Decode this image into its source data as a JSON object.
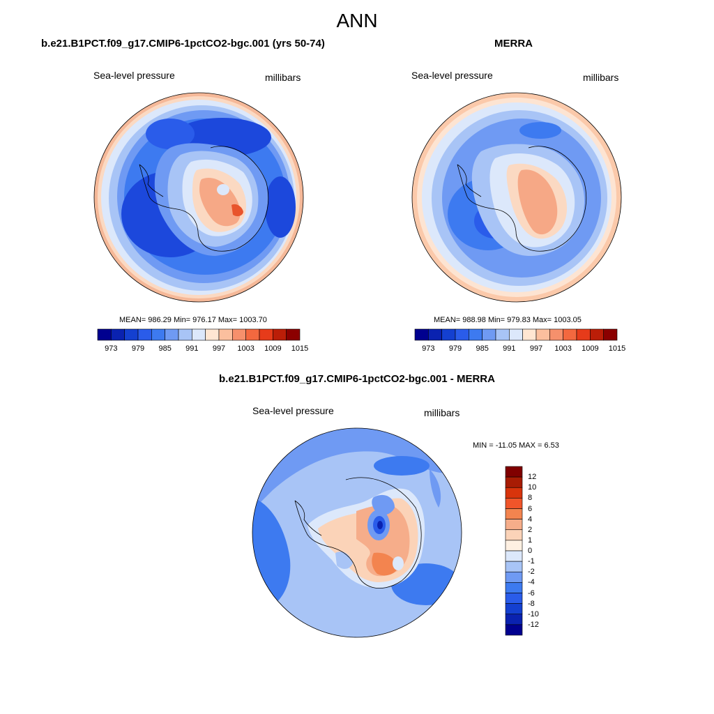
{
  "figure": {
    "main_title": "ANN",
    "panels": [
      {
        "id": "model",
        "title": "b.e21.B1PCT.f09_g17.CMIP6-1pctCO2-bgc.001 (yrs 50-74)",
        "left_label": "Sea-level pressure",
        "right_label": "millibars",
        "stats": "MEAN= 986.29  Min= 976.17  Max= 1003.70"
      },
      {
        "id": "obs",
        "title": "MERRA",
        "left_label": "Sea-level pressure",
        "right_label": "millibars",
        "stats": "MEAN= 988.98  Min= 979.83  Max= 1003.05"
      },
      {
        "id": "diff",
        "title": "b.e21.B1PCT.f09_g17.CMIP6-1pctCO2-bgc.001 - MERRA",
        "left_label": "Sea-level pressure",
        "right_label": "millibars",
        "stats": "MIN = -11.05 MAX =   6.53"
      }
    ],
    "abs_colorbar": {
      "colors": [
        "#00008f",
        "#0a22b0",
        "#1440d0",
        "#2a5cea",
        "#3d7af0",
        "#6f9af3",
        "#a8c4f6",
        "#dce8fb",
        "#ffe6d2",
        "#fbbf9e",
        "#f6906c",
        "#f3683f",
        "#e63b1a",
        "#bb1e08",
        "#8b0000"
      ],
      "tick_labels": [
        "973",
        "979",
        "985",
        "991",
        "997",
        "1003",
        "1009",
        "1015"
      ]
    },
    "diff_colorbar": {
      "colors": [
        "#00008f",
        "#0a22b0",
        "#1440d0",
        "#2a5cea",
        "#3d7af0",
        "#6f9af3",
        "#a8c4f6",
        "#dce8fb",
        "#fef0e2",
        "#fbd3b8",
        "#f6ad8a",
        "#f3844f",
        "#f0552a",
        "#d8340c",
        "#a81c04",
        "#800000"
      ],
      "tick_labels": [
        "12",
        "10",
        "8",
        "6",
        "4",
        "2",
        "1",
        "0",
        "-1",
        "-2",
        "-4",
        "-6",
        "-8",
        "-10",
        "-12"
      ]
    },
    "map_colors": {
      "deep": "#1740d6",
      "mid": "#3366ee",
      "light": "#6f9af3",
      "pale": "#a8c4f6",
      "faint": "#dce8fb",
      "warm1": "#ffe6d2",
      "warm2": "#fbbf9e",
      "warm3": "#f6906c",
      "warm4": "#e8542c"
    }
  }
}
